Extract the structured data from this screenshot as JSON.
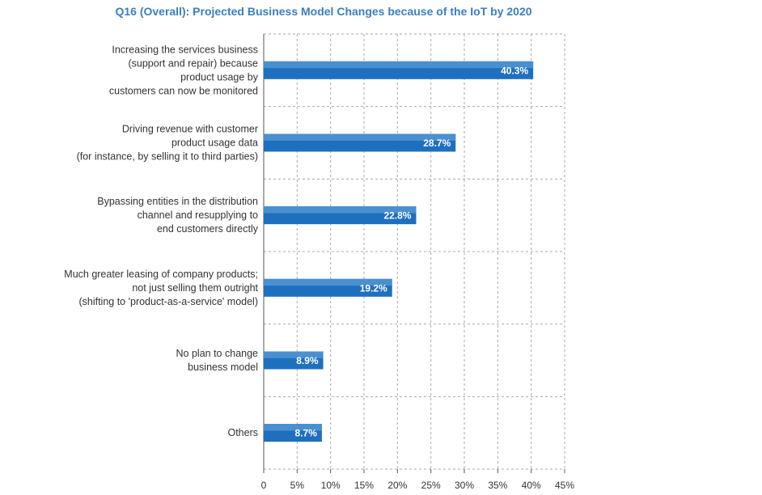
{
  "chart_data": {
    "type": "bar",
    "orientation": "horizontal",
    "title": "Q16 (Overall): Projected Business Model Changes because of the IoT by 2020",
    "categories": [
      [
        "Increasing the services business",
        "(support and repair) because",
        "product usage by",
        "customers can now be monitored"
      ],
      [
        "Driving revenue with customer",
        "product usage data",
        "(for instance, by selling it to third parties)"
      ],
      [
        "Bypassing entities in the distribution",
        "channel and  resupplying to",
        "end customers directly"
      ],
      [
        "Much greater leasing of company products;",
        "not just selling them outright",
        "(shifting to 'product-as-a-service' model)"
      ],
      [
        "No plan to change",
        "business model"
      ],
      [
        "Others"
      ]
    ],
    "values": [
      40.3,
      28.7,
      22.8,
      19.2,
      8.9,
      8.7
    ],
    "value_labels": [
      "40.3%",
      "28.7%",
      "22.8%",
      "19.2%",
      "8.9%",
      "8.7%"
    ],
    "xticks": [
      "0",
      "5%",
      "10%",
      "15%",
      "20%",
      "25%",
      "30%",
      "35%",
      "40%",
      "45%"
    ],
    "xlim": [
      0,
      45
    ],
    "grid": true,
    "grid_style": "dashed",
    "legend": "none",
    "bar_color": "#1f6fbf",
    "bar_highlight_color": "#4a90d0",
    "grid_color": "#aaaaaa"
  }
}
